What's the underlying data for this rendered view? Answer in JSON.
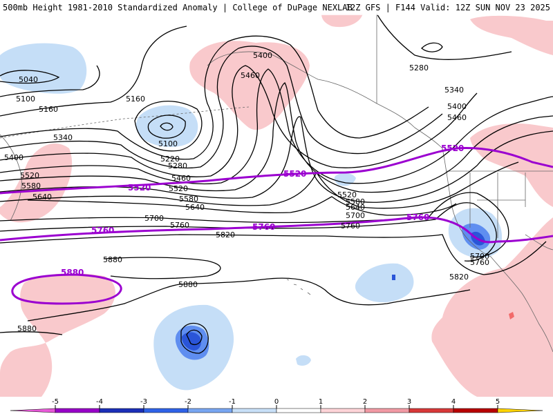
{
  "header": {
    "title": "500mb Height 1981-2010 Standardized Anomaly | College of DuPage NEXLAB",
    "run": "12Z GFS | F144 Valid: 12Z SUN NOV 23 2025"
  },
  "colors": {
    "pos1": "#f9c9cc",
    "neg1": "#c5def7",
    "neg2": "#5f8ef0",
    "neg3": "#2a55d8",
    "contour": "#000000",
    "highlight": "#9b00d0"
  },
  "contours": {
    "labels": [
      "5040",
      "5100",
      "5160",
      "5160",
      "5100",
      "5220",
      "5280",
      "5340",
      "5400",
      "5460",
      "5520",
      "5580",
      "5640",
      "5700",
      "5760",
      "5820",
      "5880",
      "5880",
      "5880",
      "5400",
      "5460",
      "5520",
      "5580",
      "5640",
      "5700",
      "5760",
      "5280",
      "5340",
      "5400",
      "5460",
      "5520",
      "5580",
      "5640",
      "5700",
      "5760",
      "5820",
      "5700",
      "5760",
      "5820",
      "5880"
    ]
  },
  "highlight_labels": [
    "5520",
    "5520",
    "5520",
    "5760",
    "5760",
    "5760",
    "5880"
  ],
  "legend": {
    "ticks": [
      "-5",
      "-4",
      "-3",
      "-2",
      "-1",
      "0",
      "1",
      "2",
      "3",
      "4",
      "5"
    ],
    "colors": [
      "#e85ad8",
      "#9800c8",
      "#1b2fb8",
      "#2f62e8",
      "#78a6f2",
      "#c8e0f8",
      "#ffffff",
      "#ffd4d8",
      "#f29aa4",
      "#d83838",
      "#b80000",
      "#f59a00",
      "#ffd400"
    ]
  }
}
